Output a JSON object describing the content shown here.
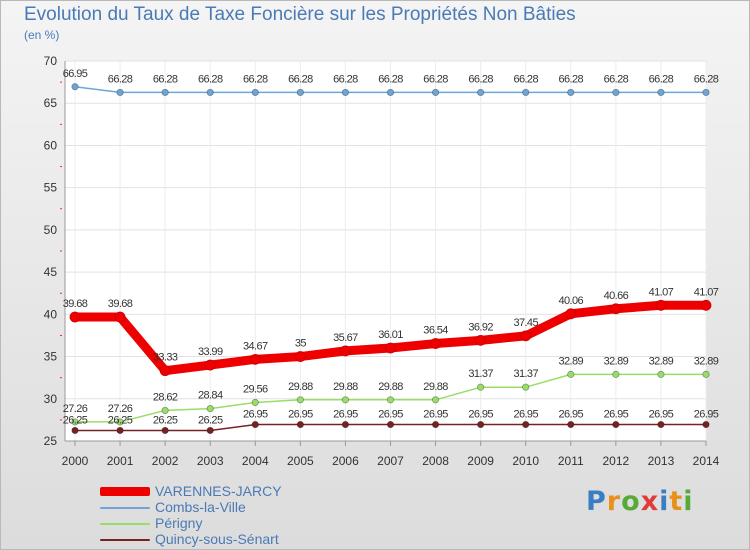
{
  "chart_data": {
    "type": "line",
    "title": "Evolution du Taux de Taxe Foncière sur les Propriétés Non Bâties",
    "subtitle": "(en %)",
    "xlabel": "",
    "ylabel": "",
    "categories": [
      "2000",
      "2001",
      "2002",
      "2003",
      "2004",
      "2005",
      "2006",
      "2007",
      "2008",
      "2009",
      "2010",
      "2011",
      "2012",
      "2013",
      "2014"
    ],
    "ylim": [
      25,
      70
    ],
    "yticks": [
      25,
      30,
      35,
      40,
      45,
      50,
      55,
      60,
      65,
      70
    ],
    "legend_position": "bottom-left",
    "series": [
      {
        "name": "VARENNES-JARCY",
        "color": "#ee0000",
        "values": [
          39.68,
          39.68,
          33.33,
          33.99,
          34.67,
          35,
          35.67,
          36.01,
          36.54,
          36.92,
          37.45,
          40.06,
          40.66,
          41.07,
          41.07
        ],
        "labels": [
          "39.68",
          "39.68",
          "33.33",
          "33.99",
          "34.67",
          "35",
          "35.67",
          "36.01",
          "36.54",
          "36.92",
          "37.45",
          "40.06",
          "40.66",
          "41.07",
          "41.07"
        ]
      },
      {
        "name": "Combs-la-Ville",
        "color": "#6fa5d6",
        "values": [
          66.95,
          66.28,
          66.28,
          66.28,
          66.28,
          66.28,
          66.28,
          66.28,
          66.28,
          66.28,
          66.28,
          66.28,
          66.28,
          66.28,
          66.28
        ],
        "labels": [
          "66.95",
          "66.28",
          "66.28",
          "66.28",
          "66.28",
          "66.28",
          "66.28",
          "66.28",
          "66.28",
          "66.28",
          "66.28",
          "66.28",
          "66.28",
          "66.28",
          "66.28"
        ]
      },
      {
        "name": "Périgny",
        "color": "#99dd66",
        "values": [
          27.26,
          27.26,
          28.62,
          28.84,
          29.56,
          29.88,
          29.88,
          29.88,
          29.88,
          31.37,
          31.37,
          32.89,
          32.89,
          32.89,
          32.89
        ],
        "labels": [
          "27.26",
          "27.26",
          "28.62",
          "28.84",
          "29.56",
          "29.88",
          "29.88",
          "29.88",
          "29.88",
          "31.37",
          "31.37",
          "32.89",
          "32.89",
          "32.89",
          "32.89"
        ]
      },
      {
        "name": "Quincy-sous-Sénart",
        "color": "#772222",
        "values": [
          26.25,
          26.25,
          26.25,
          26.25,
          26.95,
          26.95,
          26.95,
          26.95,
          26.95,
          26.95,
          26.95,
          26.95,
          26.95,
          26.95,
          26.95
        ],
        "labels": [
          "26.25",
          "26.25",
          "26.25",
          "26.25",
          "26.95",
          "26.95",
          "26.95",
          "26.95",
          "26.95",
          "26.95",
          "26.95",
          "26.95",
          "26.95",
          "26.95",
          "26.95"
        ]
      }
    ]
  },
  "logo": {
    "letters": [
      "P",
      "r",
      "o",
      "x",
      "i",
      "t",
      "i"
    ],
    "colors": [
      "#3a7ec2",
      "#e8901a",
      "#57a93a",
      "#e03a3a",
      "#3a7ec2",
      "#e8901a",
      "#57a93a"
    ]
  }
}
